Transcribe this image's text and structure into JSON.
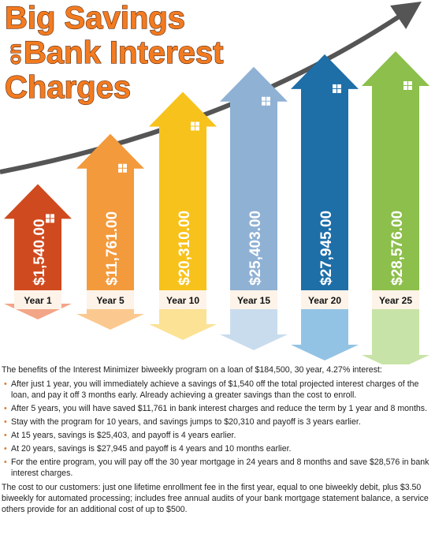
{
  "chart_data": {
    "type": "bar",
    "title": [
      "Big Savings",
      "on",
      "Bank Interest",
      "Charges"
    ],
    "categories": [
      "Year 1",
      "Year 5",
      "Year 10",
      "Year 15",
      "Year 20",
      "Year 25"
    ],
    "values": [
      1540,
      11761,
      20310,
      25403,
      27945,
      28576
    ],
    "value_labels": [
      "$1,540.00",
      "$11,761.00",
      "$20,310.00",
      "$25,403.00",
      "$27,945.00",
      "$28,576.00"
    ],
    "colors": [
      "#d04a1f",
      "#f39a3c",
      "#f7c21b",
      "#8fb1d4",
      "#1e6ea7",
      "#8cbf4b"
    ],
    "tail_colors": [
      "#f3a588",
      "#fbc990",
      "#fbe295",
      "#c9dcee",
      "#92c3e4",
      "#c8e3a7"
    ]
  },
  "body": {
    "intro": "The benefits of the Interest Minimizer biweekly program on a loan of $184,500, 30 year, 4.27% interest:",
    "bullets": [
      "After just 1 year, you will immediately achieve a savings of $1,540 off the total projected interest charges of the loan, and pay it off 3 months early.  Already achieving a greater savings than the cost to enroll.",
      "After 5 years, you will have saved $11,761 in bank interest charges and reduce the term by 1 year and 8 months.",
      "Stay with the program for 10 years, and savings jumps to $20,310 and payoff is 3 years earlier.",
      "At 15 years, savings is $25,403, and payoff is 4 years earlier.",
      "At 20 years, savings is $27,945 and payoff is 4 years and 10 months earlier.",
      "For the entire program, you will pay off the 30 year mortgage in 24 years and 8 months and save $28,576 in bank interest charges."
    ],
    "closing": "The cost to our customers: just one lifetime enrollment fee in the first year, equal to one biweekly debit, plus $3.50 biweekly for automated processing; includes free annual audits of your bank mortgage statement balance, a service others provide for an additional cost of up to $500."
  }
}
